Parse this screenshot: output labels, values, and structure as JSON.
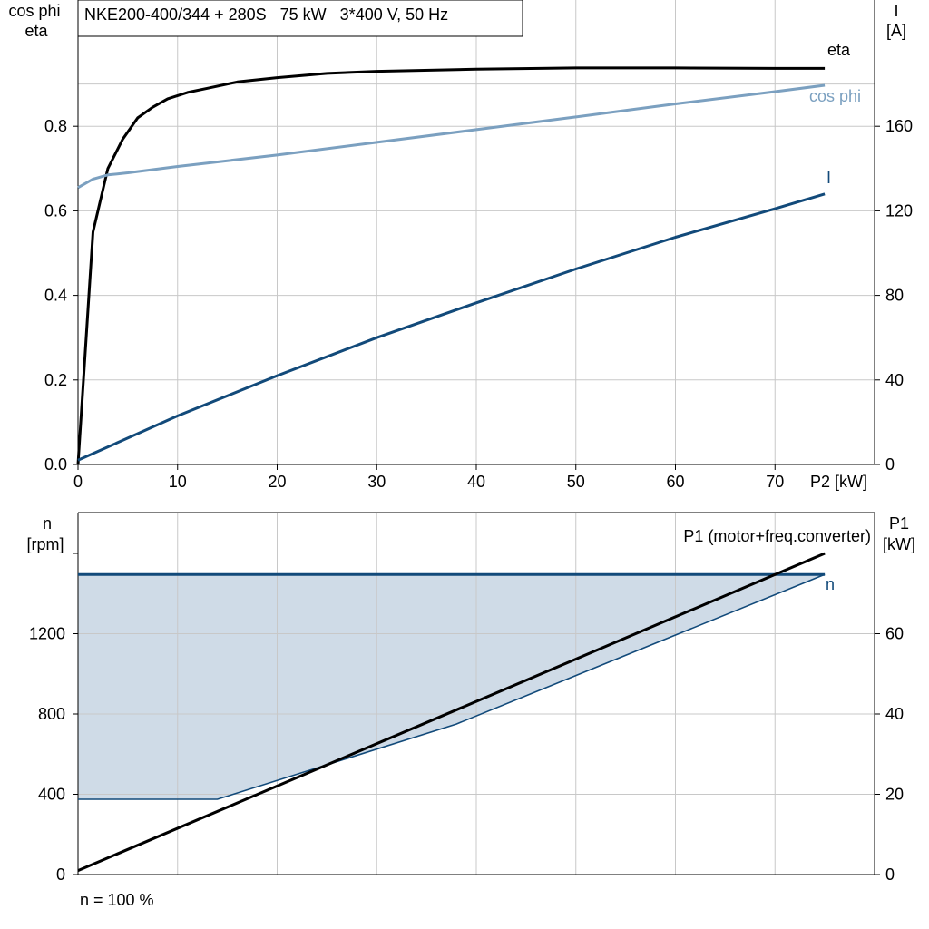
{
  "colors": {
    "eta": "#000000",
    "cos_phi": "#7ba0c0",
    "current": "#124a7a",
    "speed": "#124a7a",
    "speed_fill": "#cfdbe7",
    "p1": "#000000",
    "grid": "#c8c8c8"
  },
  "chart_data": [
    {
      "type": "line",
      "title": "NKE200-400/344 + 280S   75 kW   3*400 V, 50 Hz",
      "xlabel": "P2 [kW]",
      "ylabel_left": [
        "cos phi",
        "eta"
      ],
      "ylabel_right": [
        "I",
        "[A]"
      ],
      "xlim": [
        0,
        80
      ],
      "ylim_left": [
        0,
        1.0
      ],
      "ylim_right": [
        0,
        200
      ],
      "x_ticks": [
        0,
        10,
        20,
        30,
        40,
        50,
        60,
        70
      ],
      "y_ticks_left": [
        "0.0",
        "0.2",
        "0.4",
        "0.6",
        "0.8"
      ],
      "y_ticks_right": [
        "0",
        "40",
        "80",
        "120",
        "160"
      ],
      "grid": true,
      "series": [
        {
          "name": "eta",
          "axis": "left",
          "color_key": "eta",
          "x": [
            0,
            1.5,
            3,
            4.5,
            6,
            7.5,
            9,
            11,
            13,
            16,
            20,
            25,
            30,
            40,
            50,
            60,
            70,
            75
          ],
          "y": [
            0.0,
            0.55,
            0.7,
            0.77,
            0.82,
            0.845,
            0.865,
            0.88,
            0.89,
            0.905,
            0.915,
            0.925,
            0.93,
            0.935,
            0.938,
            0.938,
            0.937,
            0.937
          ]
        },
        {
          "name": "cos phi",
          "axis": "left",
          "color_key": "cos_phi",
          "x": [
            0,
            1.5,
            3,
            5,
            10,
            20,
            30,
            40,
            50,
            60,
            70,
            75
          ],
          "y": [
            0.655,
            0.675,
            0.685,
            0.69,
            0.705,
            0.732,
            0.762,
            0.792,
            0.822,
            0.853,
            0.882,
            0.897
          ]
        },
        {
          "name": "I",
          "axis": "right",
          "color_key": "current",
          "x": [
            0,
            10,
            20,
            30,
            40,
            50,
            60,
            70,
            75
          ],
          "y": [
            2,
            23,
            42,
            60,
            76.5,
            92.5,
            107.5,
            121,
            128
          ]
        }
      ]
    },
    {
      "type": "area",
      "xlabel": "",
      "ylabel_left": [
        "n",
        "[rpm]"
      ],
      "ylabel_right": [
        "P1",
        "[kW]"
      ],
      "xlim": [
        0,
        80
      ],
      "ylim_left": [
        0,
        1600
      ],
      "ylim_right": [
        0,
        80
      ],
      "y_ticks_left": [
        "0",
        "400",
        "800",
        "1200"
      ],
      "y_ticks_right": [
        "0",
        "20",
        "40",
        "60"
      ],
      "grid": true,
      "series": [
        {
          "name": "n",
          "axis": "left",
          "color_key": "speed",
          "x": [
            0,
            14,
            38,
            75
          ],
          "y": [
            375,
            375,
            750,
            1495
          ]
        },
        {
          "name": "P1 (motor+freq.converter)",
          "axis": "right",
          "color_key": "p1",
          "x": [
            0,
            75
          ],
          "y": [
            1,
            80
          ]
        }
      ],
      "band": {
        "upper": 1495,
        "x": [
          0,
          14,
          38,
          75
        ],
        "lower": [
          375,
          375,
          750,
          1495
        ]
      },
      "annotation": "n = 100 %"
    }
  ]
}
